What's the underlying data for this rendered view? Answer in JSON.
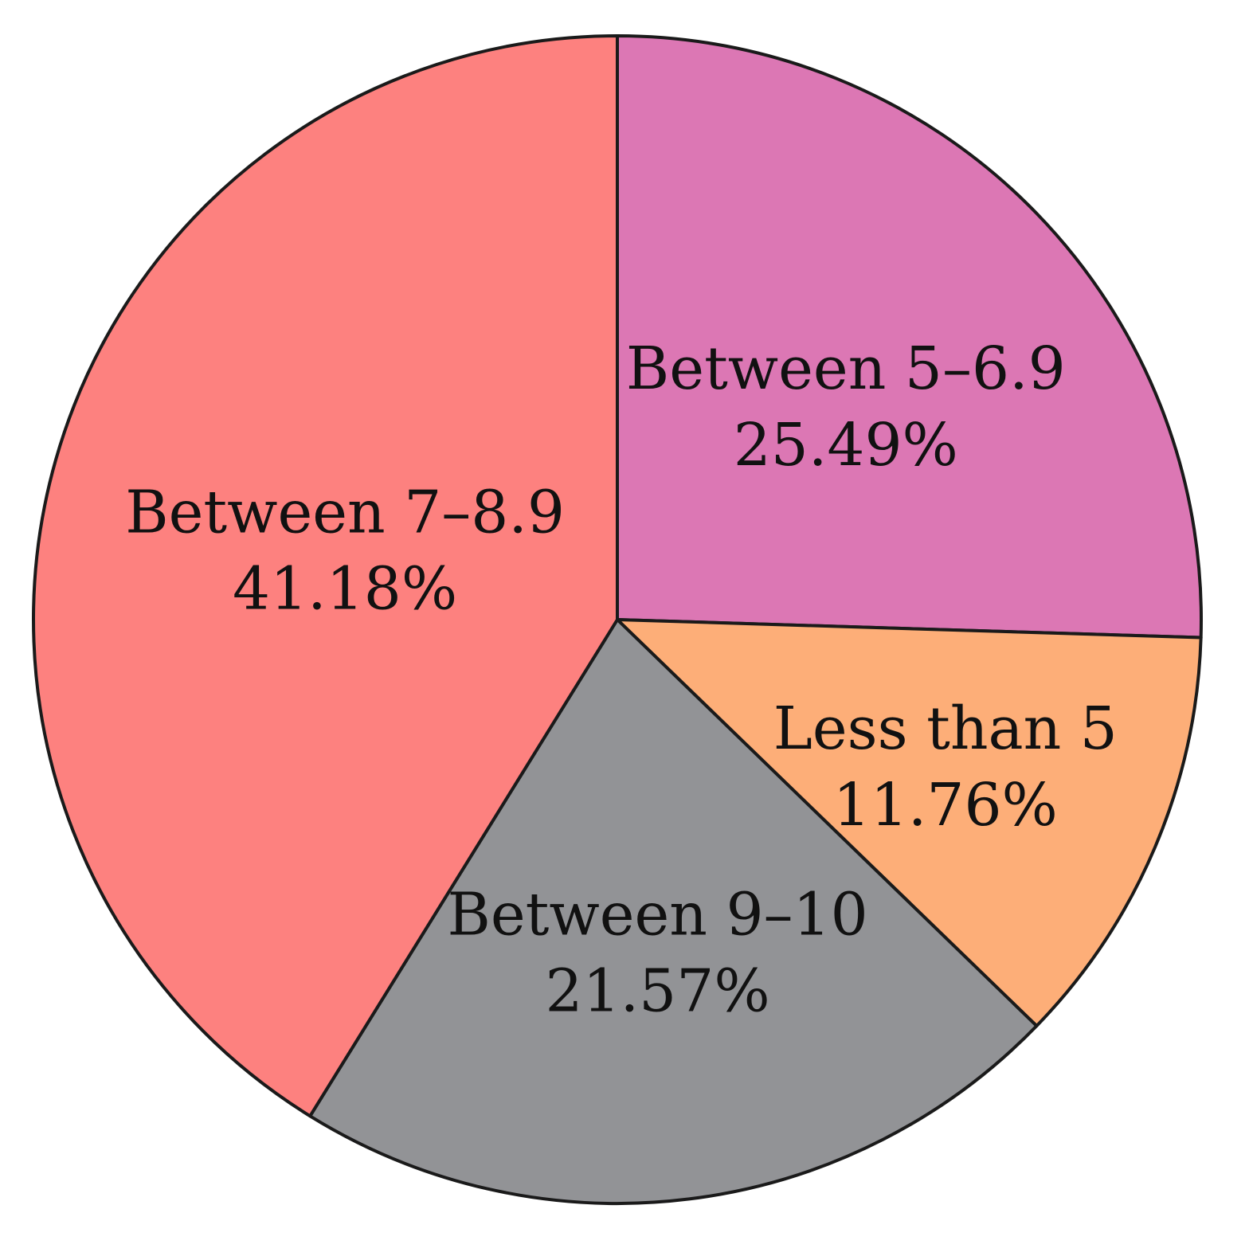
{
  "chart_data": {
    "type": "pie",
    "start_direction": "up",
    "direction": "clockwise",
    "slices": [
      {
        "label": "Between 5–6.9",
        "value": 25.49,
        "value_label": "25.49%",
        "color": "#DC77B4"
      },
      {
        "label": "Less than 5",
        "value": 11.76,
        "value_label": "11.76%",
        "color": "#FDAE78"
      },
      {
        "label": "Between 9–10",
        "value": 21.57,
        "value_label": "21.57%",
        "color": "#929396"
      },
      {
        "label": "Between 7–8.9",
        "value": 41.18,
        "value_label": "41.18%",
        "color": "#FD817F"
      }
    ]
  }
}
